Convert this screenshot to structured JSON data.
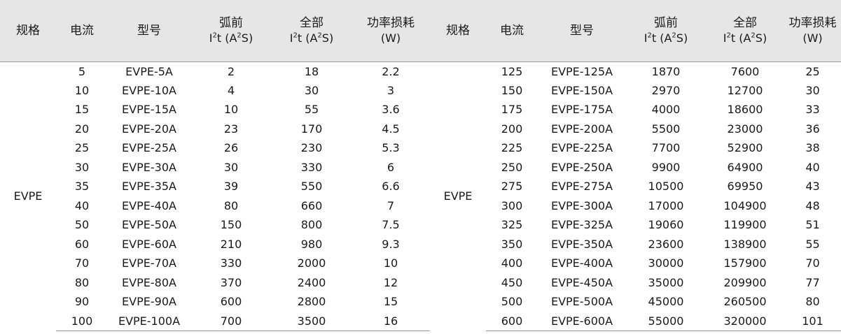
{
  "headers": {
    "spec": "规格",
    "current": "电流",
    "model": "型号",
    "prearc_line1": "弧前",
    "total_line1": "全部",
    "i2t_line2_prefix": "I",
    "i2t_line2_sup": "2",
    "i2t_line2_mid": "t (A",
    "i2t_line2_sup2": "2",
    "i2t_line2_suffix": "S)",
    "power_line1": "功率损耗",
    "power_line2": "(W)"
  },
  "left": {
    "spec": "EVPE",
    "rows": [
      {
        "current": "5",
        "model": "EVPE-5A",
        "prearc": "2",
        "total": "18",
        "power": "2.2"
      },
      {
        "current": "10",
        "model": "EVPE-10A",
        "prearc": "4",
        "total": "30",
        "power": "3"
      },
      {
        "current": "15",
        "model": "EVPE-15A",
        "prearc": "10",
        "total": "55",
        "power": "3.6"
      },
      {
        "current": "20",
        "model": "EVPE-20A",
        "prearc": "23",
        "total": "170",
        "power": "4.5"
      },
      {
        "current": "25",
        "model": "EVPE-25A",
        "prearc": "26",
        "total": "230",
        "power": "5.3"
      },
      {
        "current": "30",
        "model": "EVPE-30A",
        "prearc": "30",
        "total": "330",
        "power": "6"
      },
      {
        "current": "35",
        "model": "EVPE-35A",
        "prearc": "39",
        "total": "550",
        "power": "6.6"
      },
      {
        "current": "40",
        "model": "EVPE-40A",
        "prearc": "80",
        "total": "660",
        "power": "7"
      },
      {
        "current": "50",
        "model": "EVPE-50A",
        "prearc": "150",
        "total": "800",
        "power": "7.5"
      },
      {
        "current": "60",
        "model": "EVPE-60A",
        "prearc": "210",
        "total": "980",
        "power": "9.3"
      },
      {
        "current": "70",
        "model": "EVPE-70A",
        "prearc": "330",
        "total": "2000",
        "power": "10"
      },
      {
        "current": "80",
        "model": "EVPE-80A",
        "prearc": "370",
        "total": "2400",
        "power": "12"
      },
      {
        "current": "90",
        "model": "EVPE-90A",
        "prearc": "600",
        "total": "2800",
        "power": "15"
      },
      {
        "current": "100",
        "model": "EVPE-100A",
        "prearc": "700",
        "total": "3500",
        "power": "16"
      }
    ]
  },
  "right": {
    "spec": "EVPE",
    "rows": [
      {
        "current": "125",
        "model": "EVPE-125A",
        "prearc": "1870",
        "total": "7600",
        "power": "25"
      },
      {
        "current": "150",
        "model": "EVPE-150A",
        "prearc": "2970",
        "total": "12700",
        "power": "30"
      },
      {
        "current": "175",
        "model": "EVPE-175A",
        "prearc": "4000",
        "total": "18600",
        "power": "33"
      },
      {
        "current": "200",
        "model": "EVPE-200A",
        "prearc": "5500",
        "total": "23000",
        "power": "36"
      },
      {
        "current": "225",
        "model": "EVPE-225A",
        "prearc": "7700",
        "total": "52900",
        "power": "38"
      },
      {
        "current": "250",
        "model": "EVPE-250A",
        "prearc": "9900",
        "total": "64900",
        "power": "40"
      },
      {
        "current": "275",
        "model": "EVPE-275A",
        "prearc": "10500",
        "total": "69950",
        "power": "43"
      },
      {
        "current": "300",
        "model": "EVPE-300A",
        "prearc": "17000",
        "total": "104900",
        "power": "48"
      },
      {
        "current": "325",
        "model": "EVPE-325A",
        "prearc": "19060",
        "total": "119900",
        "power": "51"
      },
      {
        "current": "350",
        "model": "EVPE-350A",
        "prearc": "23600",
        "total": "138900",
        "power": "55"
      },
      {
        "current": "400",
        "model": "EVPE-400A",
        "prearc": "30000",
        "total": "157900",
        "power": "70"
      },
      {
        "current": "450",
        "model": "EVPE-450A",
        "prearc": "35000",
        "total": "209900",
        "power": "77"
      },
      {
        "current": "500",
        "model": "EVPE-500A",
        "prearc": "45000",
        "total": "260500",
        "power": "80"
      },
      {
        "current": "600",
        "model": "EVPE-600A",
        "prearc": "55000",
        "total": "320000",
        "power": "101"
      }
    ]
  }
}
